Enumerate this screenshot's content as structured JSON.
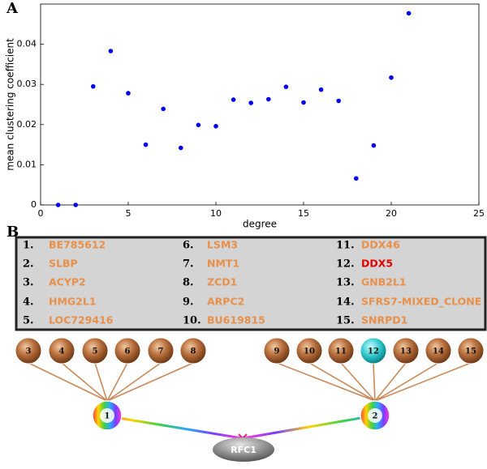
{
  "chart_data": {
    "type": "scatter",
    "panel_label": "A",
    "x_label": "degree",
    "y_label": "mean clustering coefficient",
    "x": [
      1,
      2,
      3,
      4,
      5,
      6,
      7,
      8,
      9,
      10,
      11,
      12,
      13,
      14,
      15,
      16,
      17,
      18,
      19,
      20,
      21
    ],
    "values": [
      0.0,
      0.0,
      0.0295,
      0.0383,
      0.0278,
      0.015,
      0.0239,
      0.0142,
      0.0199,
      0.0196,
      0.0262,
      0.0254,
      0.0263,
      0.0294,
      0.0255,
      0.0287,
      0.0259,
      0.0066,
      0.0148,
      0.0317,
      0.0477
    ],
    "color": "#0000ee",
    "xlim": [
      0,
      25
    ],
    "xticks": [
      0,
      5,
      10,
      15,
      20,
      25
    ],
    "ylim": [
      0,
      0.05
    ],
    "yticks": [
      0,
      0.01,
      0.02,
      0.03,
      0.04
    ]
  },
  "diagram": {
    "panel_label": "B",
    "items": [
      {
        "number": "1.",
        "name": "BE785612"
      },
      {
        "number": "2.",
        "name": "SLBP"
      },
      {
        "number": "3.",
        "name": "ACYP2"
      },
      {
        "number": "4.",
        "name": "HMG2L1"
      },
      {
        "number": "5.",
        "name": "LOC729416"
      },
      {
        "number": "6.",
        "name": "LSM3"
      },
      {
        "number": "7.",
        "name": "NMT1"
      },
      {
        "number": "8.",
        "name": "ZCD1"
      },
      {
        "number": "9.",
        "name": "ARPC2"
      },
      {
        "number": "10.",
        "name": "BU619815"
      },
      {
        "number": "11.",
        "name": "DDX46"
      },
      {
        "number": "12.",
        "name": "DDX5"
      },
      {
        "number": "13.",
        "name": "GNB2L1"
      },
      {
        "number": "14.",
        "name": "SFRS7-MIXED_CLONE"
      },
      {
        "number": "15.",
        "name": "SNRPD1"
      }
    ],
    "left_nodes": [
      "3",
      "4",
      "5",
      "6",
      "7",
      "8"
    ],
    "right_nodes": [
      "9",
      "10",
      "11",
      "12",
      "13",
      "14",
      "15"
    ],
    "hubs": [
      "1",
      "2"
    ],
    "target": "RFC1"
  }
}
